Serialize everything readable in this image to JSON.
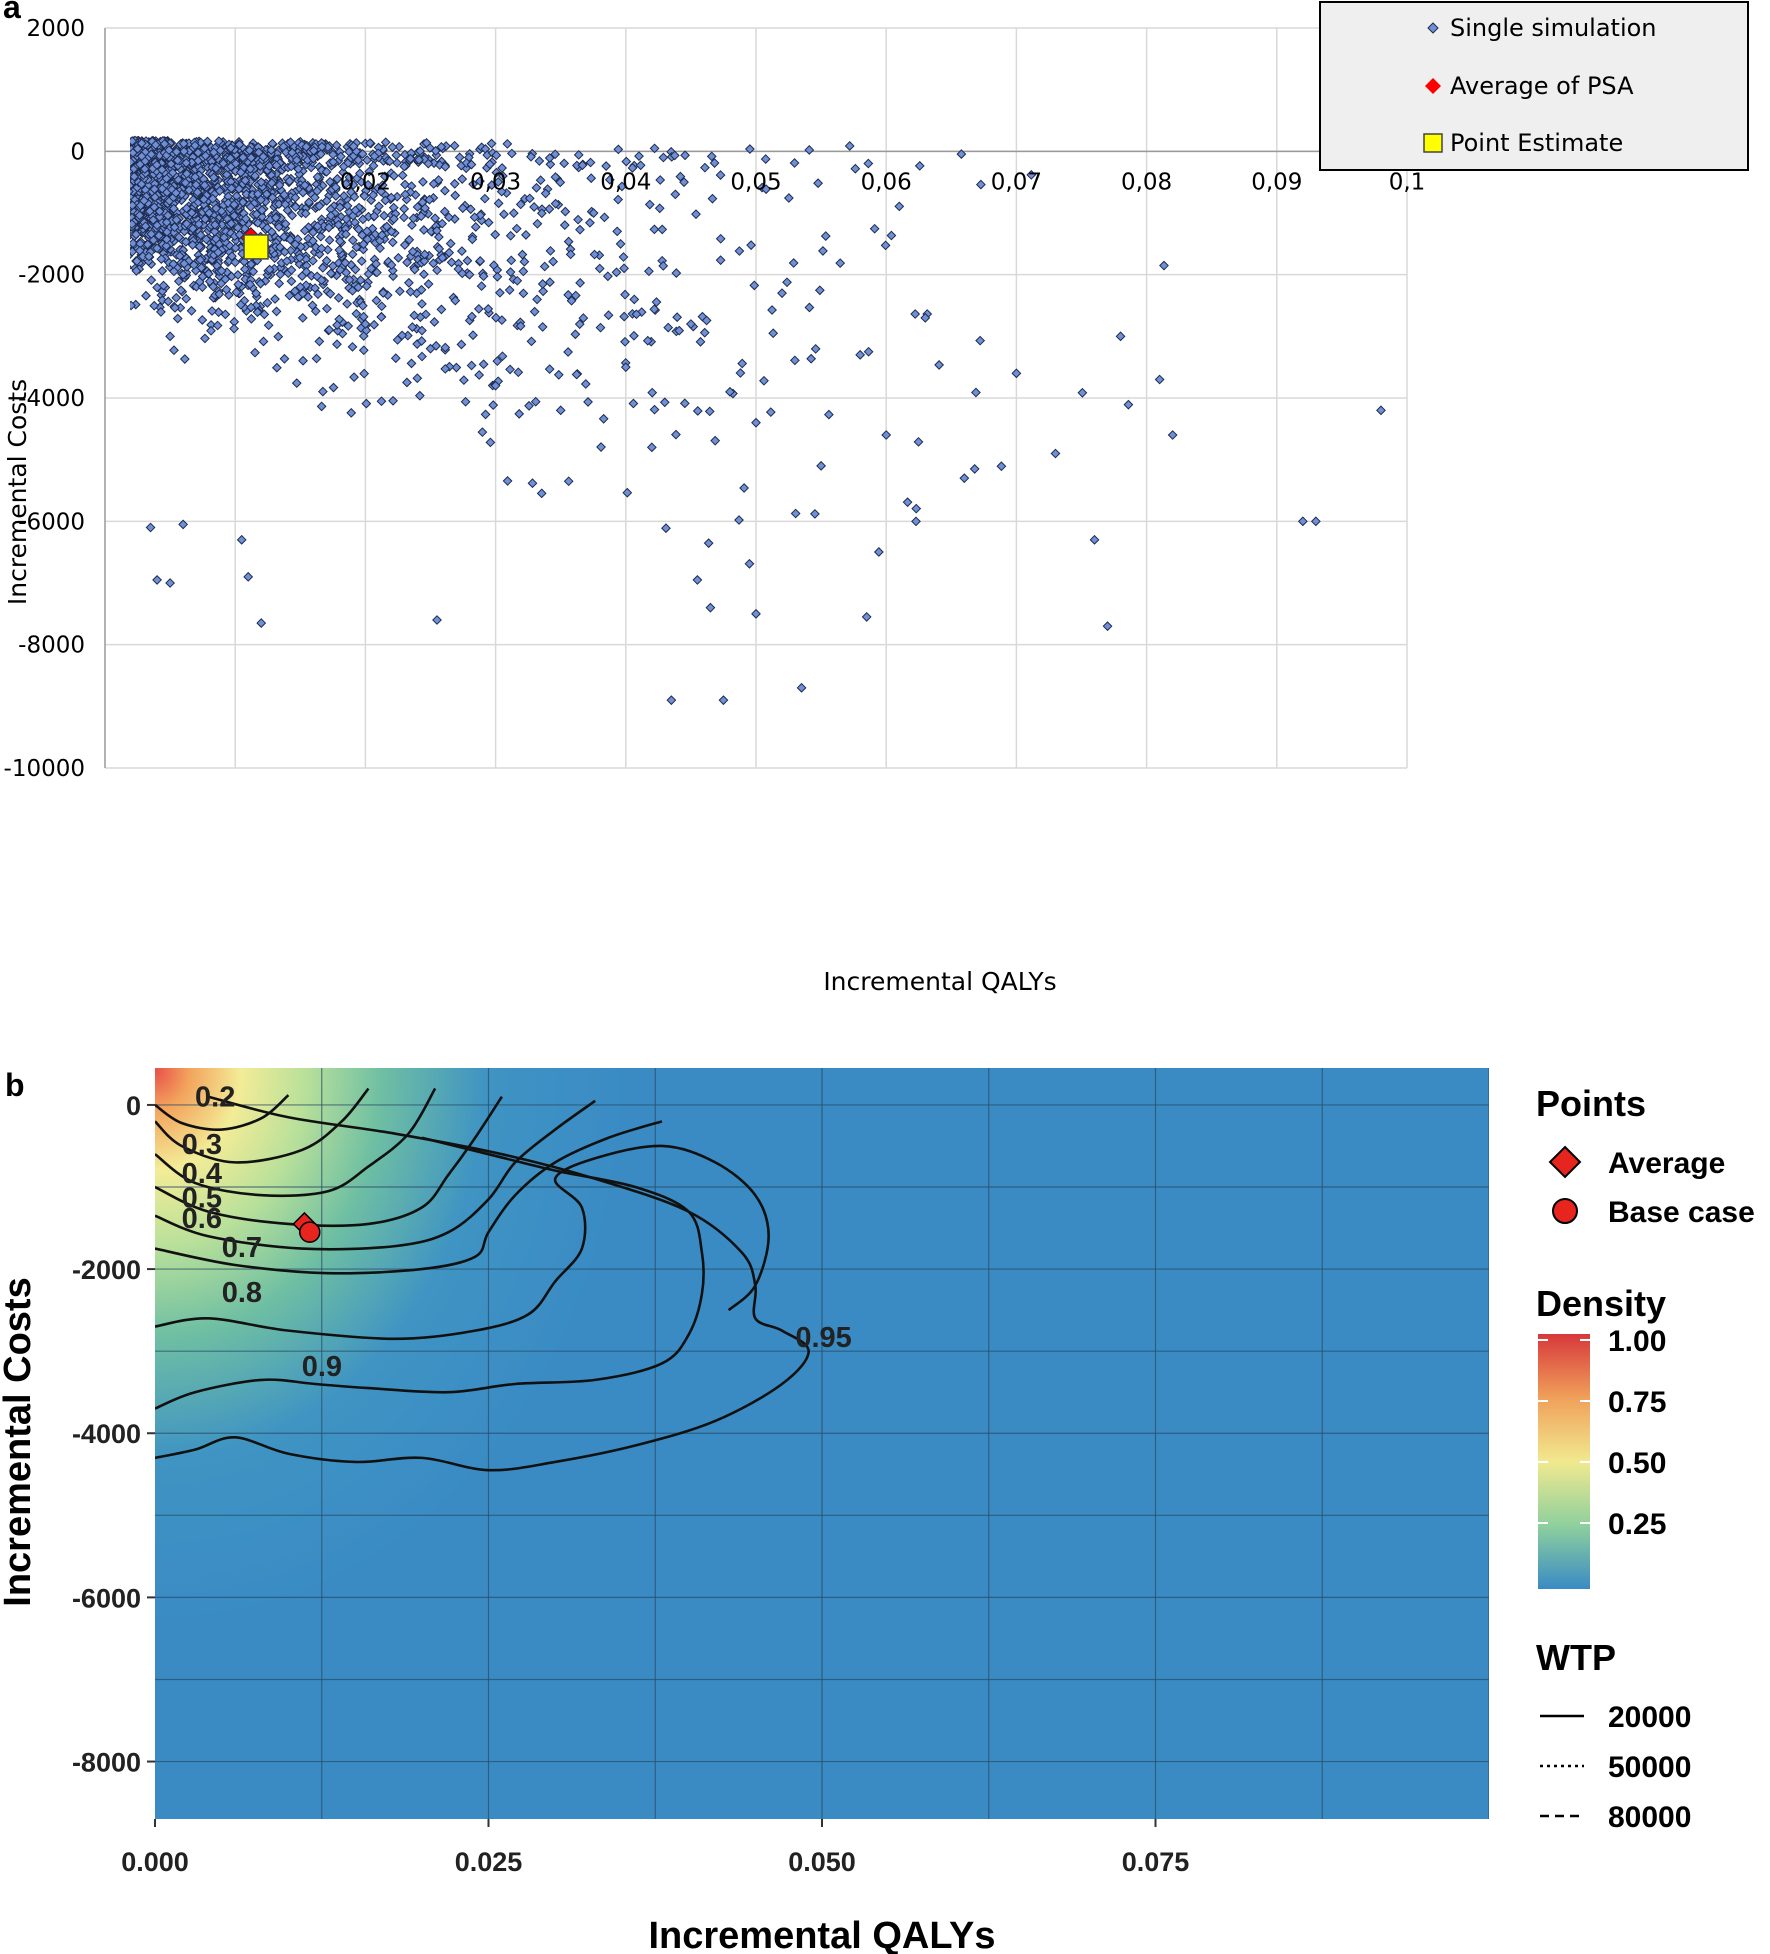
{
  "chart_data": [
    {
      "panel": "a",
      "type": "scatter",
      "xlabel": "Incremental QALYs",
      "ylabel": "Incremental Costs",
      "xlim": [
        0,
        0.1
      ],
      "ylim": [
        -10000,
        2000
      ],
      "x_ticks": [
        "0,02",
        "0,03",
        "0,04",
        "0,05",
        "0,06",
        "0,07",
        "0,08",
        "0,09",
        "0,1"
      ],
      "x_tick_values": [
        0.02,
        0.03,
        0.04,
        0.05,
        0.06,
        0.07,
        0.08,
        0.09,
        0.1
      ],
      "y_ticks": [
        "2000",
        "0",
        "-2000",
        "-4000",
        "-6000",
        "-8000",
        "-10000"
      ],
      "y_tick_values": [
        2000,
        0,
        -2000,
        -4000,
        -6000,
        -8000,
        -10000
      ],
      "grid": true,
      "legend_position": "top-right",
      "legend": [
        "Single simulation",
        "Average of PSA",
        "Point Estimate"
      ],
      "series": [
        {
          "name": "Single simulation",
          "color": "#6f8fd6",
          "cloud": true,
          "sample_points": [
            [
              0.0002,
              150
            ],
            [
              0.0003,
              100
            ],
            [
              0.0005,
              -600
            ],
            [
              0.001,
              -1500
            ],
            [
              0.002,
              -2500
            ],
            [
              0.003,
              -800
            ],
            [
              0.004,
              -1200
            ],
            [
              0.005,
              -3000
            ],
            [
              0.006,
              -2000
            ],
            [
              0.008,
              -1000
            ],
            [
              0.01,
              -1800
            ],
            [
              0.012,
              -500
            ],
            [
              0.015,
              -2200
            ],
            [
              0.018,
              -1600
            ],
            [
              0.02,
              -2800
            ],
            [
              0.022,
              -1300
            ],
            [
              0.025,
              -3200
            ],
            [
              0.028,
              -2000
            ],
            [
              0.03,
              -3800
            ],
            [
              0.033,
              -2600
            ],
            [
              0.035,
              -4200
            ],
            [
              0.038,
              -1900
            ],
            [
              0.04,
              -3500
            ],
            [
              0.042,
              -4800
            ],
            [
              0.045,
              -2800
            ],
            [
              0.048,
              -3900
            ],
            [
              0.05,
              -4400
            ],
            [
              0.052,
              -2300
            ],
            [
              0.055,
              -5100
            ],
            [
              0.058,
              -3300
            ],
            [
              0.06,
              -4600
            ],
            [
              0.063,
              -2700
            ],
            [
              0.066,
              -5300
            ],
            [
              0.07,
              -3600
            ],
            [
              0.073,
              -4900
            ],
            [
              0.076,
              -6300
            ],
            [
              0.077,
              -7700
            ],
            [
              0.078,
              -3000
            ],
            [
              0.081,
              -3700
            ],
            [
              0.082,
              -4600
            ],
            [
              0.092,
              -6000
            ],
            [
              0.093,
              -6000
            ],
            [
              0.098,
              -4200
            ],
            [
              0.012,
              -7650
            ],
            [
              0.0005,
              -6050
            ],
            [
              0.004,
              -6950
            ],
            [
              0.005,
              -7000
            ],
            [
              0.0255,
              -7600
            ],
            [
              0.0435,
              -8900
            ],
            [
              0.0475,
              -8900
            ],
            [
              0.0535,
              -8700
            ],
            [
              0.0585,
              -7550
            ],
            [
              0.05,
              -7500
            ],
            [
              0.0465,
              -7400
            ],
            [
              0.0455,
              -6950
            ],
            [
              0.0035,
              -6100
            ],
            [
              0.006,
              -6050
            ],
            [
              0.0105,
              -6300
            ],
            [
              0.011,
              -6900
            ]
          ]
        },
        {
          "name": "Average of PSA",
          "color": "#ff0000",
          "points": [
            [
              0.0112,
              -1400
            ]
          ]
        },
        {
          "name": "Point Estimate",
          "color": "#ffff00",
          "points": [
            [
              0.0116,
              -1550
            ]
          ]
        }
      ]
    },
    {
      "panel": "b",
      "type": "heatmap",
      "xlabel": "Incremental QALYs",
      "ylabel": "Incremental Costs",
      "xlim": [
        0,
        0.1
      ],
      "ylim": [
        -8700,
        450
      ],
      "x_ticks": [
        "0.000",
        "0.025",
        "0.050",
        "0.075"
      ],
      "x_tick_values": [
        0,
        0.025,
        0.05,
        0.075
      ],
      "y_ticks": [
        "0",
        "-2000",
        "-4000",
        "-6000",
        "-8000"
      ],
      "y_tick_values": [
        0,
        -2000,
        -4000,
        -6000,
        -8000
      ],
      "grid": true,
      "density_peak": [
        0.0,
        150
      ],
      "contour_levels": [
        "0.2",
        "0.3",
        "0.4",
        "0.5",
        "0.6",
        "0.7",
        "0.8",
        "0.9",
        "0.95"
      ],
      "contours": [
        {
          "level": "0.2",
          "pts": [
            [
              0,
              0
            ],
            [
              0.002,
              -220
            ],
            [
              0.005,
              -300
            ],
            [
              0.008,
              -160
            ],
            [
              0.01,
              120
            ]
          ]
        },
        {
          "level": "0.3",
          "pts": [
            [
              0,
              -200
            ],
            [
              0.002,
              -500
            ],
            [
              0.006,
              -700
            ],
            [
              0.011,
              -550
            ],
            [
              0.014,
              -200
            ],
            [
              0.016,
              200
            ]
          ]
        },
        {
          "level": "0.4",
          "pts": [
            [
              0,
              -600
            ],
            [
              0.003,
              -950
            ],
            [
              0.008,
              -1100
            ],
            [
              0.013,
              -1050
            ],
            [
              0.016,
              -750
            ],
            [
              0.019,
              -350
            ],
            [
              0.021,
              200
            ]
          ]
        },
        {
          "level": "0.5",
          "pts": [
            [
              0,
              -1000
            ],
            [
              0.004,
              -1300
            ],
            [
              0.01,
              -1450
            ],
            [
              0.016,
              -1450
            ],
            [
              0.02,
              -1250
            ],
            [
              0.022,
              -850
            ],
            [
              0.024,
              -400
            ],
            [
              0.026,
              100
            ]
          ]
        },
        {
          "level": "0.6",
          "pts": [
            [
              0,
              -1350
            ],
            [
              0.004,
              -1600
            ],
            [
              0.011,
              -1750
            ],
            [
              0.018,
              -1720
            ],
            [
              0.022,
              -1550
            ],
            [
              0.025,
              -1150
            ],
            [
              0.027,
              -700
            ],
            [
              0.03,
              -300
            ],
            [
              0.033,
              50
            ]
          ]
        },
        {
          "level": "0.7",
          "pts": [
            [
              0,
              -1750
            ],
            [
              0.006,
              -1950
            ],
            [
              0.013,
              -2050
            ],
            [
              0.02,
              -2000
            ],
            [
              0.024,
              -1850
            ],
            [
              0.025,
              -1550
            ],
            [
              0.027,
              -1100
            ],
            [
              0.03,
              -700
            ],
            [
              0.034,
              -400
            ],
            [
              0.038,
              -200
            ]
          ]
        },
        {
          "level": "0.8",
          "pts": [
            [
              0,
              -2700
            ],
            [
              0.004,
              -2600
            ],
            [
              0.01,
              -2750
            ],
            [
              0.018,
              -2850
            ],
            [
              0.024,
              -2750
            ],
            [
              0.028,
              -2550
            ],
            [
              0.03,
              -2150
            ],
            [
              0.032,
              -1750
            ],
            [
              0.032,
              -1250
            ],
            [
              0.03,
              -900
            ],
            [
              0.033,
              -650
            ],
            [
              0.038,
              -500
            ],
            [
              0.042,
              -700
            ],
            [
              0.045,
              -1100
            ],
            [
              0.046,
              -1600
            ],
            [
              0.045,
              -2200
            ],
            [
              0.043,
              -2500
            ]
          ]
        },
        {
          "level": "0.9",
          "pts": [
            [
              0,
              -3700
            ],
            [
              0.003,
              -3500
            ],
            [
              0.008,
              -3350
            ],
            [
              0.012,
              -3400
            ],
            [
              0.016,
              -3450
            ],
            [
              0.022,
              -3500
            ],
            [
              0.027,
              -3400
            ],
            [
              0.033,
              -3350
            ],
            [
              0.038,
              -3150
            ],
            [
              0.04,
              -2800
            ],
            [
              0.041,
              -2300
            ],
            [
              0.041,
              -1800
            ],
            [
              0.04,
              -1300
            ],
            [
              0.036,
              -1000
            ],
            [
              0.03,
              -800
            ],
            [
              0.025,
              -600
            ],
            [
              0.02,
              -400
            ]
          ]
        },
        {
          "level": "0.95",
          "pts": [
            [
              0,
              -4300
            ],
            [
              0.003,
              -4200
            ],
            [
              0.006,
              -4050
            ],
            [
              0.01,
              -4250
            ],
            [
              0.015,
              -4350
            ],
            [
              0.02,
              -4300
            ],
            [
              0.025,
              -4450
            ],
            [
              0.03,
              -4350
            ],
            [
              0.036,
              -4150
            ],
            [
              0.042,
              -3850
            ],
            [
              0.047,
              -3400
            ],
            [
              0.049,
              -3000
            ],
            [
              0.047,
              -2750
            ],
            [
              0.045,
              -2600
            ],
            [
              0.045,
              -2200
            ],
            [
              0.044,
              -1800
            ],
            [
              0.04,
              -1300
            ],
            [
              0.033,
              -900
            ],
            [
              0.026,
              -600
            ],
            [
              0.018,
              -350
            ],
            [
              0.01,
              -150
            ],
            [
              0.004,
              100
            ]
          ]
        }
      ],
      "contour_label_positions": [
        [
          "0.2",
          0.003,
          -20
        ],
        [
          "0.3",
          0.002,
          -600
        ],
        [
          "0.4",
          0.002,
          -950
        ],
        [
          "0.5",
          0.002,
          -1250
        ],
        [
          "0.6",
          0.002,
          -1500
        ],
        [
          "0.7",
          0.005,
          -1850
        ],
        [
          "0.8",
          0.005,
          -2400
        ],
        [
          "0.9",
          0.011,
          -3300
        ],
        [
          "0.95",
          0.048,
          -2950
        ]
      ],
      "legend_points_title": "Points",
      "legend_points": [
        "Average",
        "Base case"
      ],
      "legend_density_title": "Density",
      "legend_density_ticks": [
        "1.00",
        "0.75",
        "0.50",
        "0.25"
      ],
      "legend_density_values": [
        1.0,
        0.75,
        0.5,
        0.25
      ],
      "legend_wtp_title": "WTP",
      "legend_wtp": [
        "20000",
        "50000",
        "80000"
      ],
      "series": [
        {
          "name": "Average",
          "color": "#e8241e",
          "points": [
            [
              0.0112,
              -1450
            ]
          ]
        },
        {
          "name": "Base case",
          "color": "#e8241e",
          "points": [
            [
              0.0116,
              -1550
            ]
          ]
        }
      ]
    }
  ]
}
